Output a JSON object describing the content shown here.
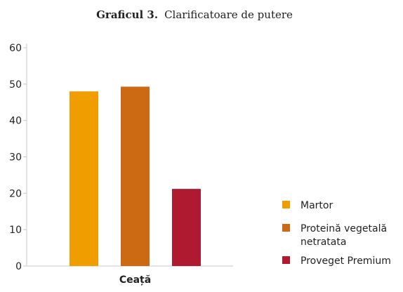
{
  "chart_data": {
    "type": "bar",
    "title_bold": "Graficul 3.",
    "title_rest": "Clarificatoare de putere",
    "categories": [
      "Ceață"
    ],
    "series": [
      {
        "name": "Martor",
        "values": [
          48
        ],
        "color": "#f09d00"
      },
      {
        "name": "Proteină vegetală netratata",
        "name_lines": [
          "Proteină vegetală",
          "netratata"
        ],
        "values": [
          49.3
        ],
        "color": "#cc6a14"
      },
      {
        "name": "Proveget Premium",
        "values": [
          21.2
        ],
        "color": "#b01a30"
      }
    ],
    "ylim": [
      0,
      60
    ],
    "yticks": [
      0,
      10,
      20,
      30,
      40,
      50,
      60
    ],
    "grid": false,
    "legend_position": "right"
  }
}
